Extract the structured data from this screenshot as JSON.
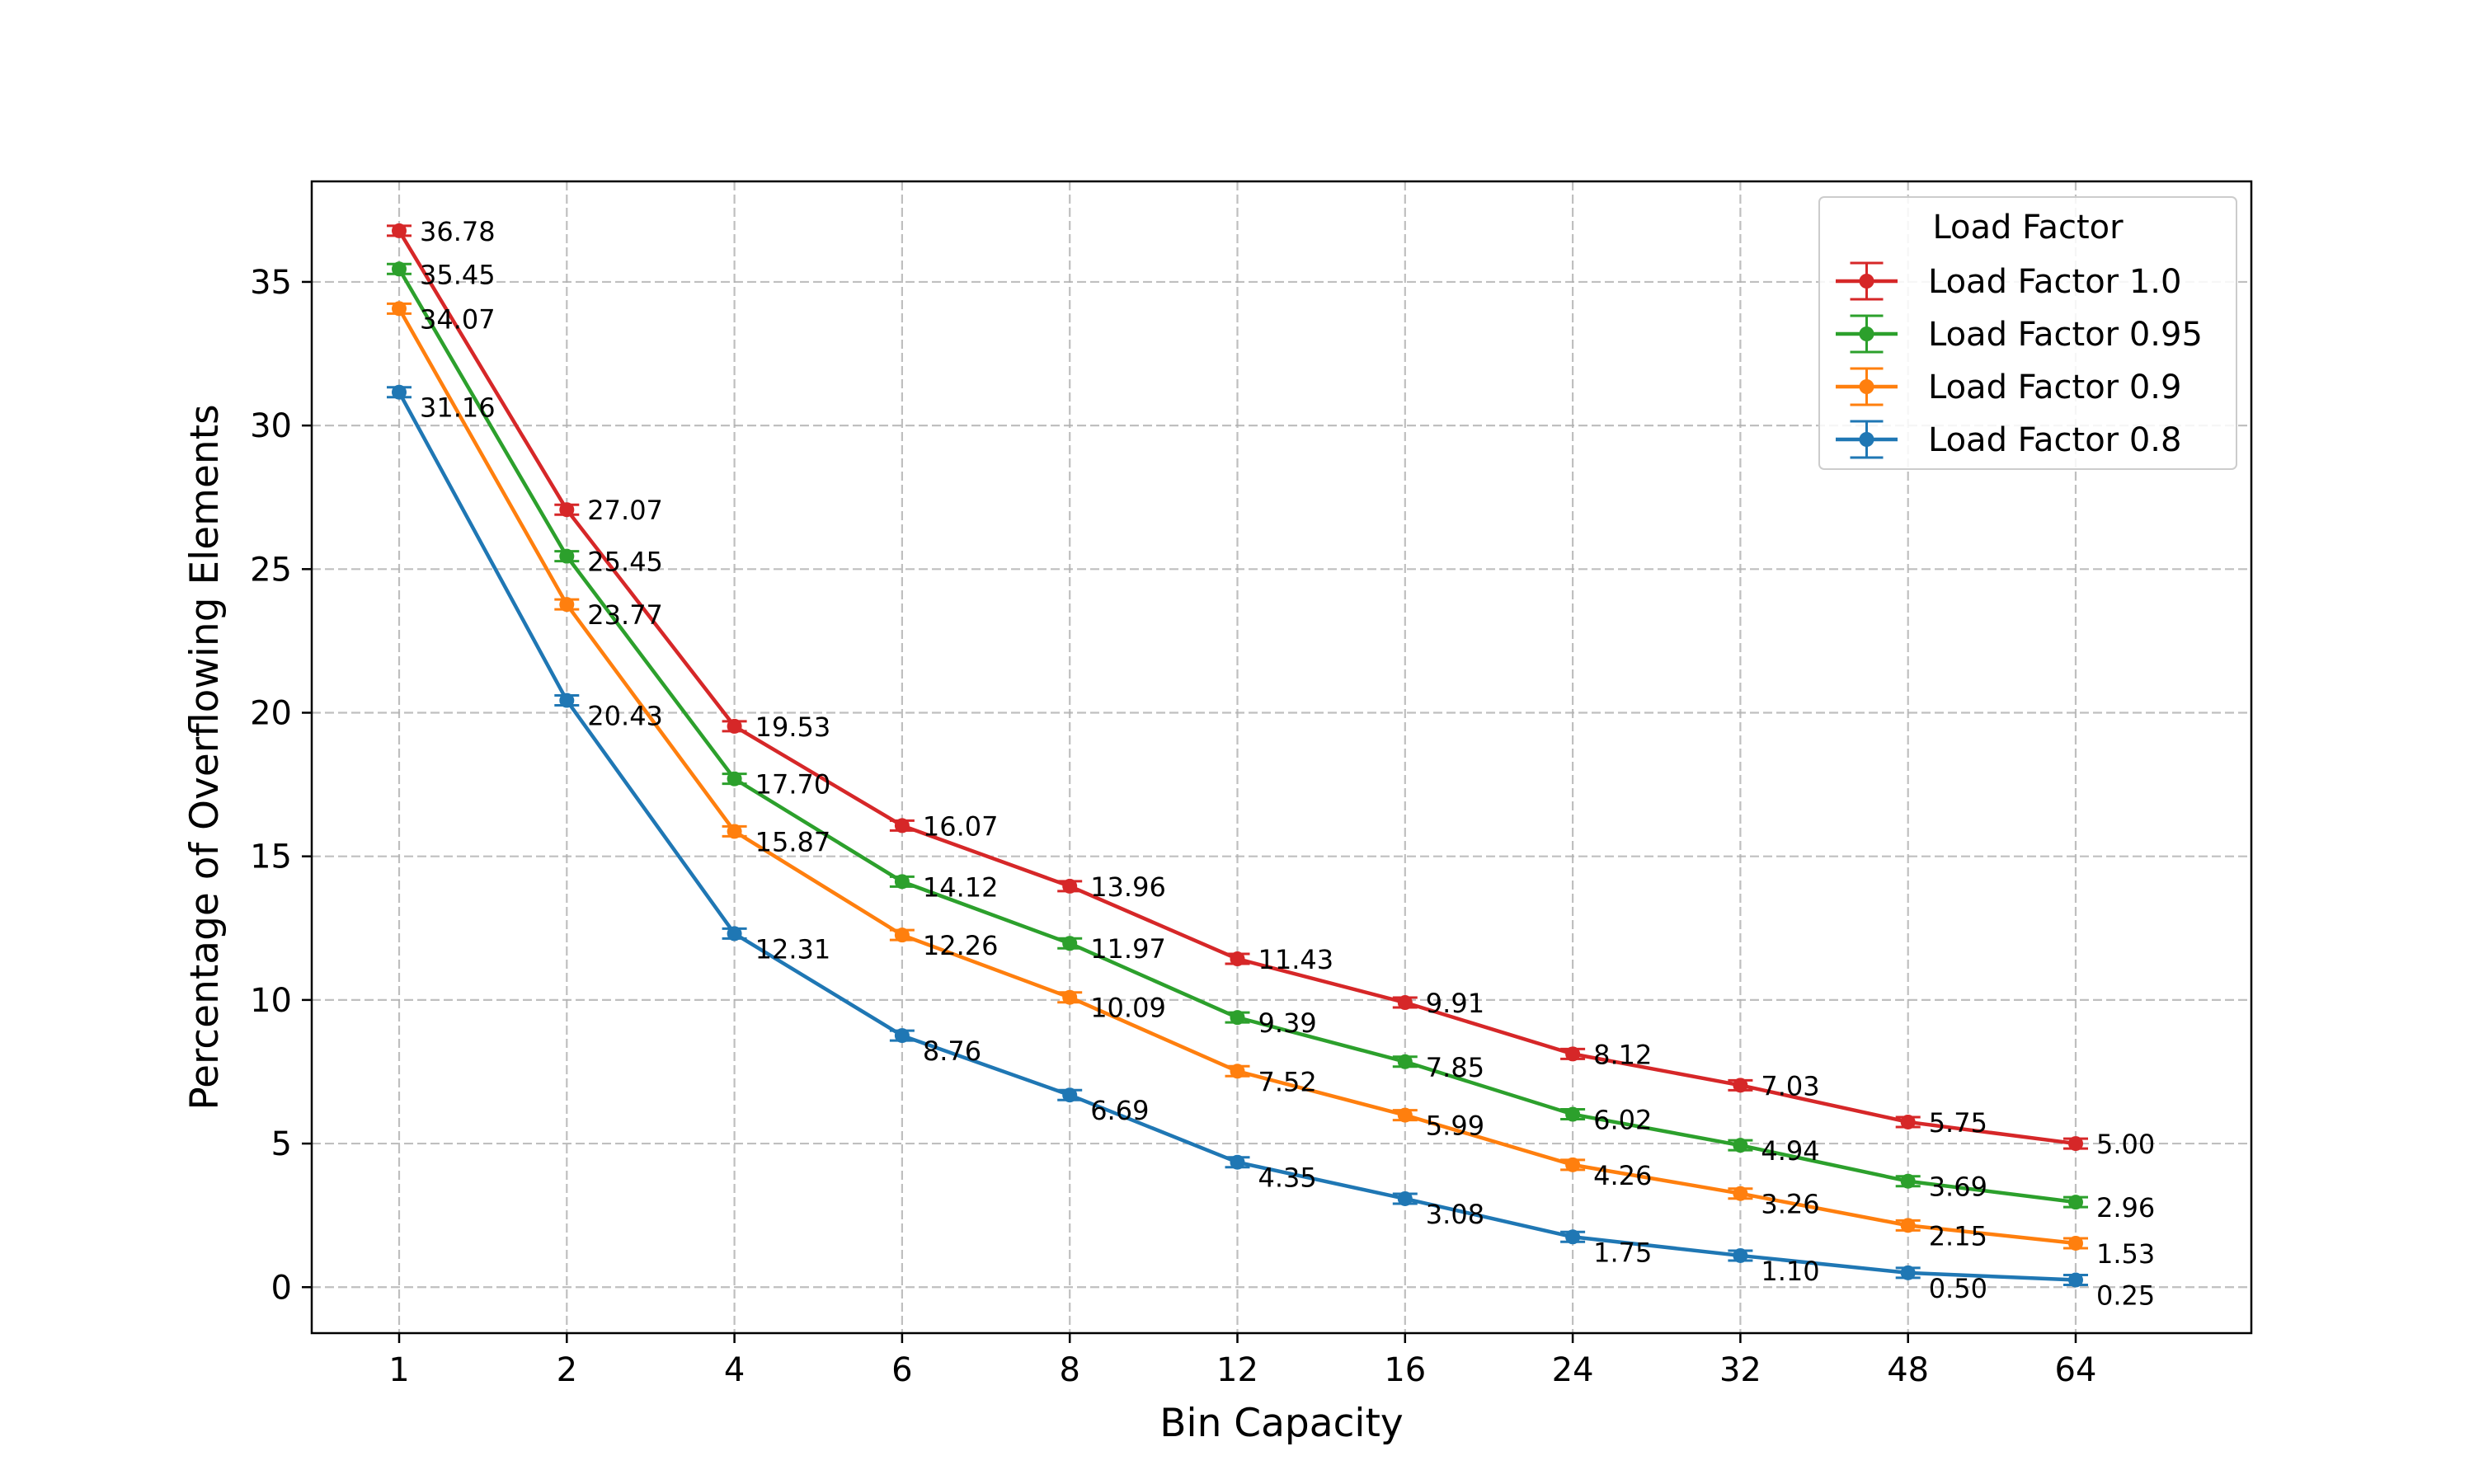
{
  "chart_data": {
    "type": "line",
    "xlabel": "Bin Capacity",
    "ylabel": "Percentage of Overflowing Elements",
    "categories": [
      "1",
      "2",
      "4",
      "6",
      "8",
      "12",
      "16",
      "24",
      "32",
      "48",
      "64"
    ],
    "ylim": [
      -1.6,
      38.5
    ],
    "yticks": [
      0,
      5,
      10,
      15,
      20,
      25,
      30,
      35
    ],
    "grid": true,
    "error_bars": true,
    "legend": {
      "title": "Load Factor",
      "position": "top-right"
    },
    "series": [
      {
        "name": "Load Factor 1.0",
        "color": "#d62728",
        "values": [
          36.78,
          27.07,
          19.53,
          16.07,
          13.96,
          11.43,
          9.91,
          8.12,
          7.03,
          5.75,
          5.0
        ],
        "labels": [
          "36.78",
          "27.07",
          "19.53",
          "16.07",
          "13.96",
          "11.43",
          "9.91",
          "8.12",
          "7.03",
          "5.75",
          "5.00"
        ]
      },
      {
        "name": "Load Factor 0.95",
        "color": "#2ca02c",
        "values": [
          35.45,
          25.45,
          17.7,
          14.12,
          11.97,
          9.39,
          7.85,
          6.02,
          4.94,
          3.69,
          2.96
        ],
        "labels": [
          "35.45",
          "25.45",
          "17.70",
          "14.12",
          "11.97",
          "9.39",
          "7.85",
          "6.02",
          "4.94",
          "3.69",
          "2.96"
        ]
      },
      {
        "name": "Load Factor 0.9",
        "color": "#ff7f0e",
        "values": [
          34.07,
          23.77,
          15.87,
          12.26,
          10.09,
          7.52,
          5.99,
          4.26,
          3.26,
          2.15,
          1.53
        ],
        "labels": [
          "34.07",
          "23.77",
          "15.87",
          "12.26",
          "10.09",
          "7.52",
          "5.99",
          "4.26",
          "3.26",
          "2.15",
          "1.53"
        ]
      },
      {
        "name": "Load Factor 0.8",
        "color": "#1f77b4",
        "values": [
          31.16,
          20.43,
          12.31,
          8.76,
          6.69,
          4.35,
          3.08,
          1.75,
          1.1,
          0.5,
          0.25
        ],
        "labels": [
          "31.16",
          "20.43",
          "12.31",
          "8.76",
          "6.69",
          "4.35",
          "3.08",
          "1.75",
          "1.10",
          "0.50",
          "0.25"
        ]
      }
    ]
  }
}
